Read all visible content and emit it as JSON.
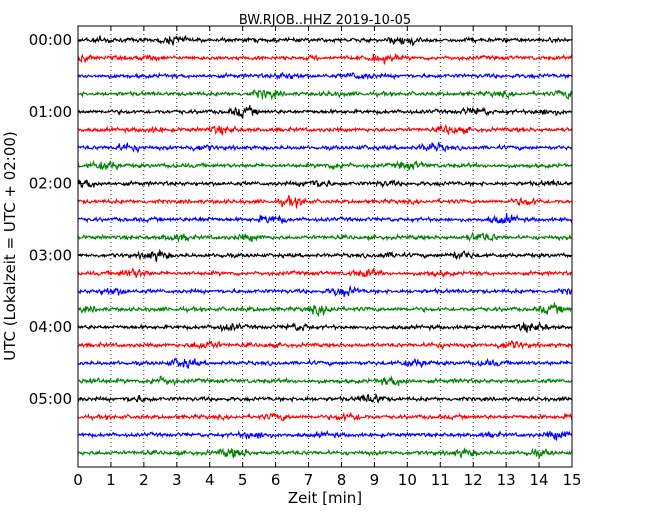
{
  "chart_data": {
    "type": "line",
    "title": "BW.RJOB..HHZ 2019-10-05",
    "xlabel": "Zeit  [min]",
    "ylabel": "UTC (Lokalzeit = UTC + 02:00)",
    "xlim": [
      0,
      15
    ],
    "x_ticks": [
      "0",
      "1",
      "2",
      "3",
      "4",
      "5",
      "6",
      "7",
      "8",
      "9",
      "10",
      "11",
      "12",
      "13",
      "14",
      "15"
    ],
    "y_ticks": [
      "00:00",
      "01:00",
      "02:00",
      "03:00",
      "04:00",
      "05:00"
    ],
    "trace_count": 24,
    "trace_interval_min": 15,
    "trace_colors": [
      "#000000",
      "#ff0000",
      "#0000ff",
      "#008000"
    ],
    "vertical_grid": "dotted at each minute",
    "series": [
      {
        "start": "00:00",
        "color": "#000000"
      },
      {
        "start": "00:15",
        "color": "#ff0000"
      },
      {
        "start": "00:30",
        "color": "#0000ff"
      },
      {
        "start": "00:45",
        "color": "#008000"
      },
      {
        "start": "01:00",
        "color": "#000000"
      },
      {
        "start": "01:15",
        "color": "#ff0000"
      },
      {
        "start": "01:30",
        "color": "#0000ff"
      },
      {
        "start": "01:45",
        "color": "#008000"
      },
      {
        "start": "02:00",
        "color": "#000000"
      },
      {
        "start": "02:15",
        "color": "#ff0000"
      },
      {
        "start": "02:30",
        "color": "#0000ff"
      },
      {
        "start": "02:45",
        "color": "#008000"
      },
      {
        "start": "03:00",
        "color": "#000000"
      },
      {
        "start": "03:15",
        "color": "#ff0000"
      },
      {
        "start": "03:30",
        "color": "#0000ff"
      },
      {
        "start": "03:45",
        "color": "#008000"
      },
      {
        "start": "04:00",
        "color": "#000000"
      },
      {
        "start": "04:15",
        "color": "#ff0000"
      },
      {
        "start": "04:30",
        "color": "#0000ff"
      },
      {
        "start": "04:45",
        "color": "#008000"
      },
      {
        "start": "05:00",
        "color": "#000000"
      },
      {
        "start": "05:15",
        "color": "#ff0000"
      },
      {
        "start": "05:30",
        "color": "#0000ff"
      },
      {
        "start": "05:45",
        "color": "#008000"
      }
    ]
  }
}
